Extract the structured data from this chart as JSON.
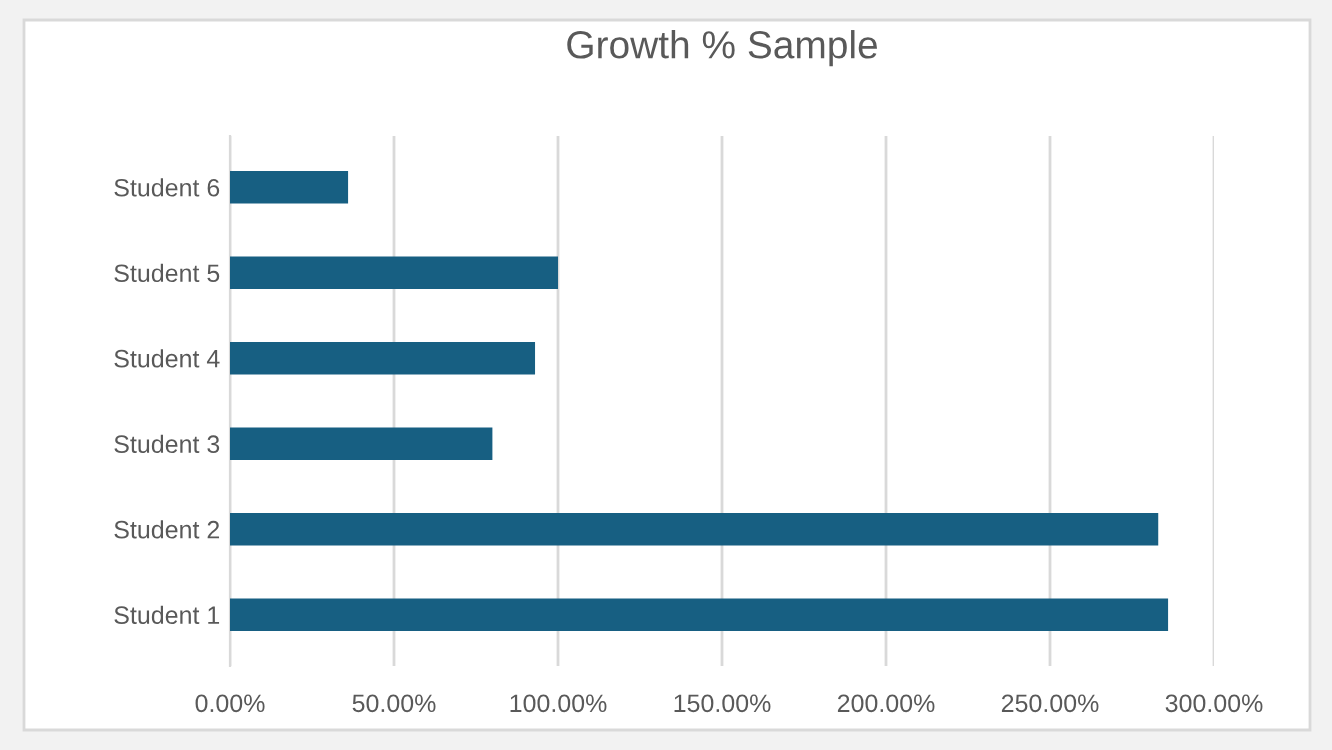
{
  "chart_data": {
    "type": "bar",
    "orientation": "horizontal",
    "title": "Growth % Sample",
    "categories": [
      "Student 6",
      "Student 5",
      "Student 4",
      "Student 3",
      "Student 2",
      "Student 1"
    ],
    "values": [
      36,
      100,
      93,
      80,
      283,
      286
    ],
    "color": "#175f82",
    "xlim": [
      0,
      300
    ],
    "xticks": [
      {
        "value": 0,
        "label": "0.00%"
      },
      {
        "value": 50,
        "label": "50.00%"
      },
      {
        "value": 100,
        "label": "100.00%"
      },
      {
        "value": 150,
        "label": "150.00%"
      },
      {
        "value": 200,
        "label": "200.00%"
      },
      {
        "value": 250,
        "label": "250.00%"
      },
      {
        "value": 300,
        "label": "300.00%"
      }
    ],
    "grid": "x"
  }
}
